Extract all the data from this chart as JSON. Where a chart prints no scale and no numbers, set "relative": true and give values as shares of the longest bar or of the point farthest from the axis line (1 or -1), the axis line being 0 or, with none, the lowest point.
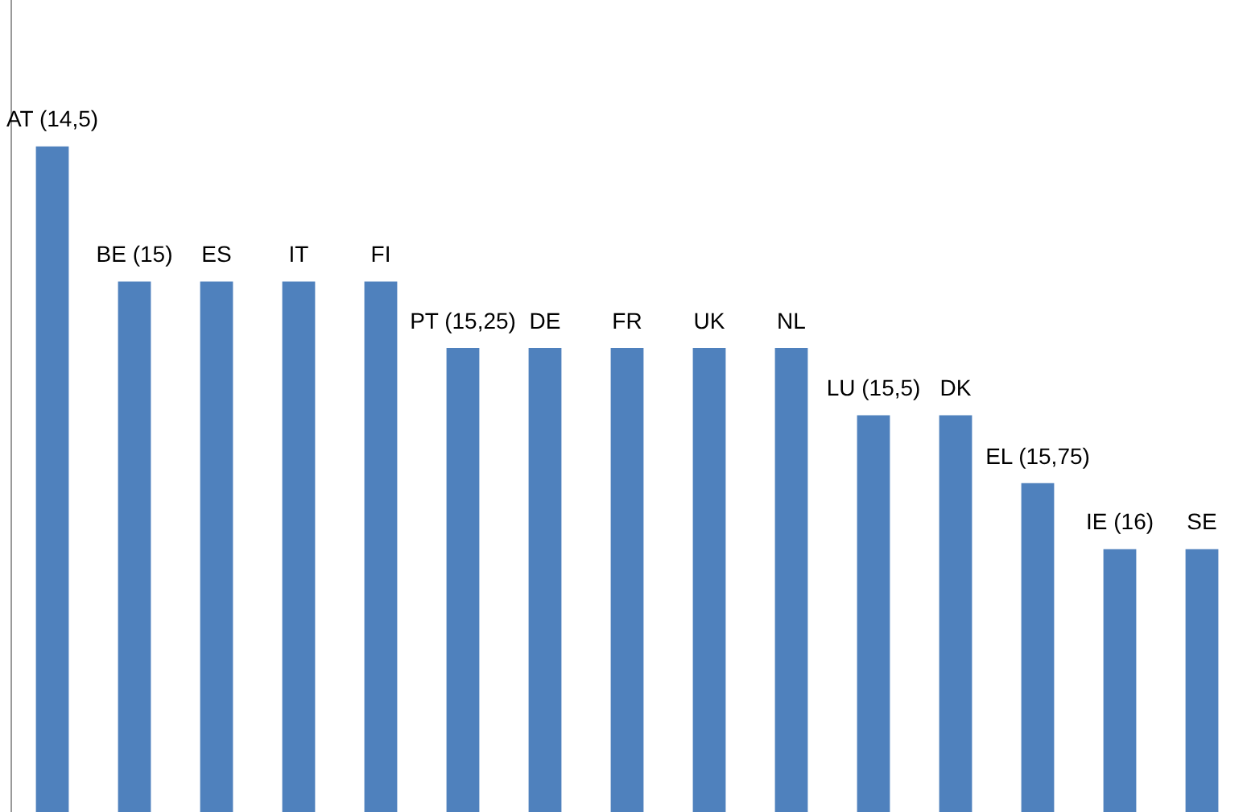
{
  "chart_data": {
    "type": "bar",
    "relative": true,
    "color": "#4f81bd",
    "legend": false,
    "grid": false,
    "tick_labels": false,
    "categories": [
      "AT (14,5)",
      "BE (15)",
      "ES",
      "IT",
      "FI",
      "PT (15,25)",
      "DE",
      "FR",
      "UK",
      "NL",
      "LU (15,5)",
      "DK",
      "EL (15,75)",
      "IE (16)",
      "SE"
    ],
    "values": [
      1,
      0.797,
      0.797,
      0.797,
      0.797,
      0.697,
      0.697,
      0.697,
      0.697,
      0.697,
      0.596,
      0.596,
      0.494,
      0.395,
      0.395
    ]
  }
}
